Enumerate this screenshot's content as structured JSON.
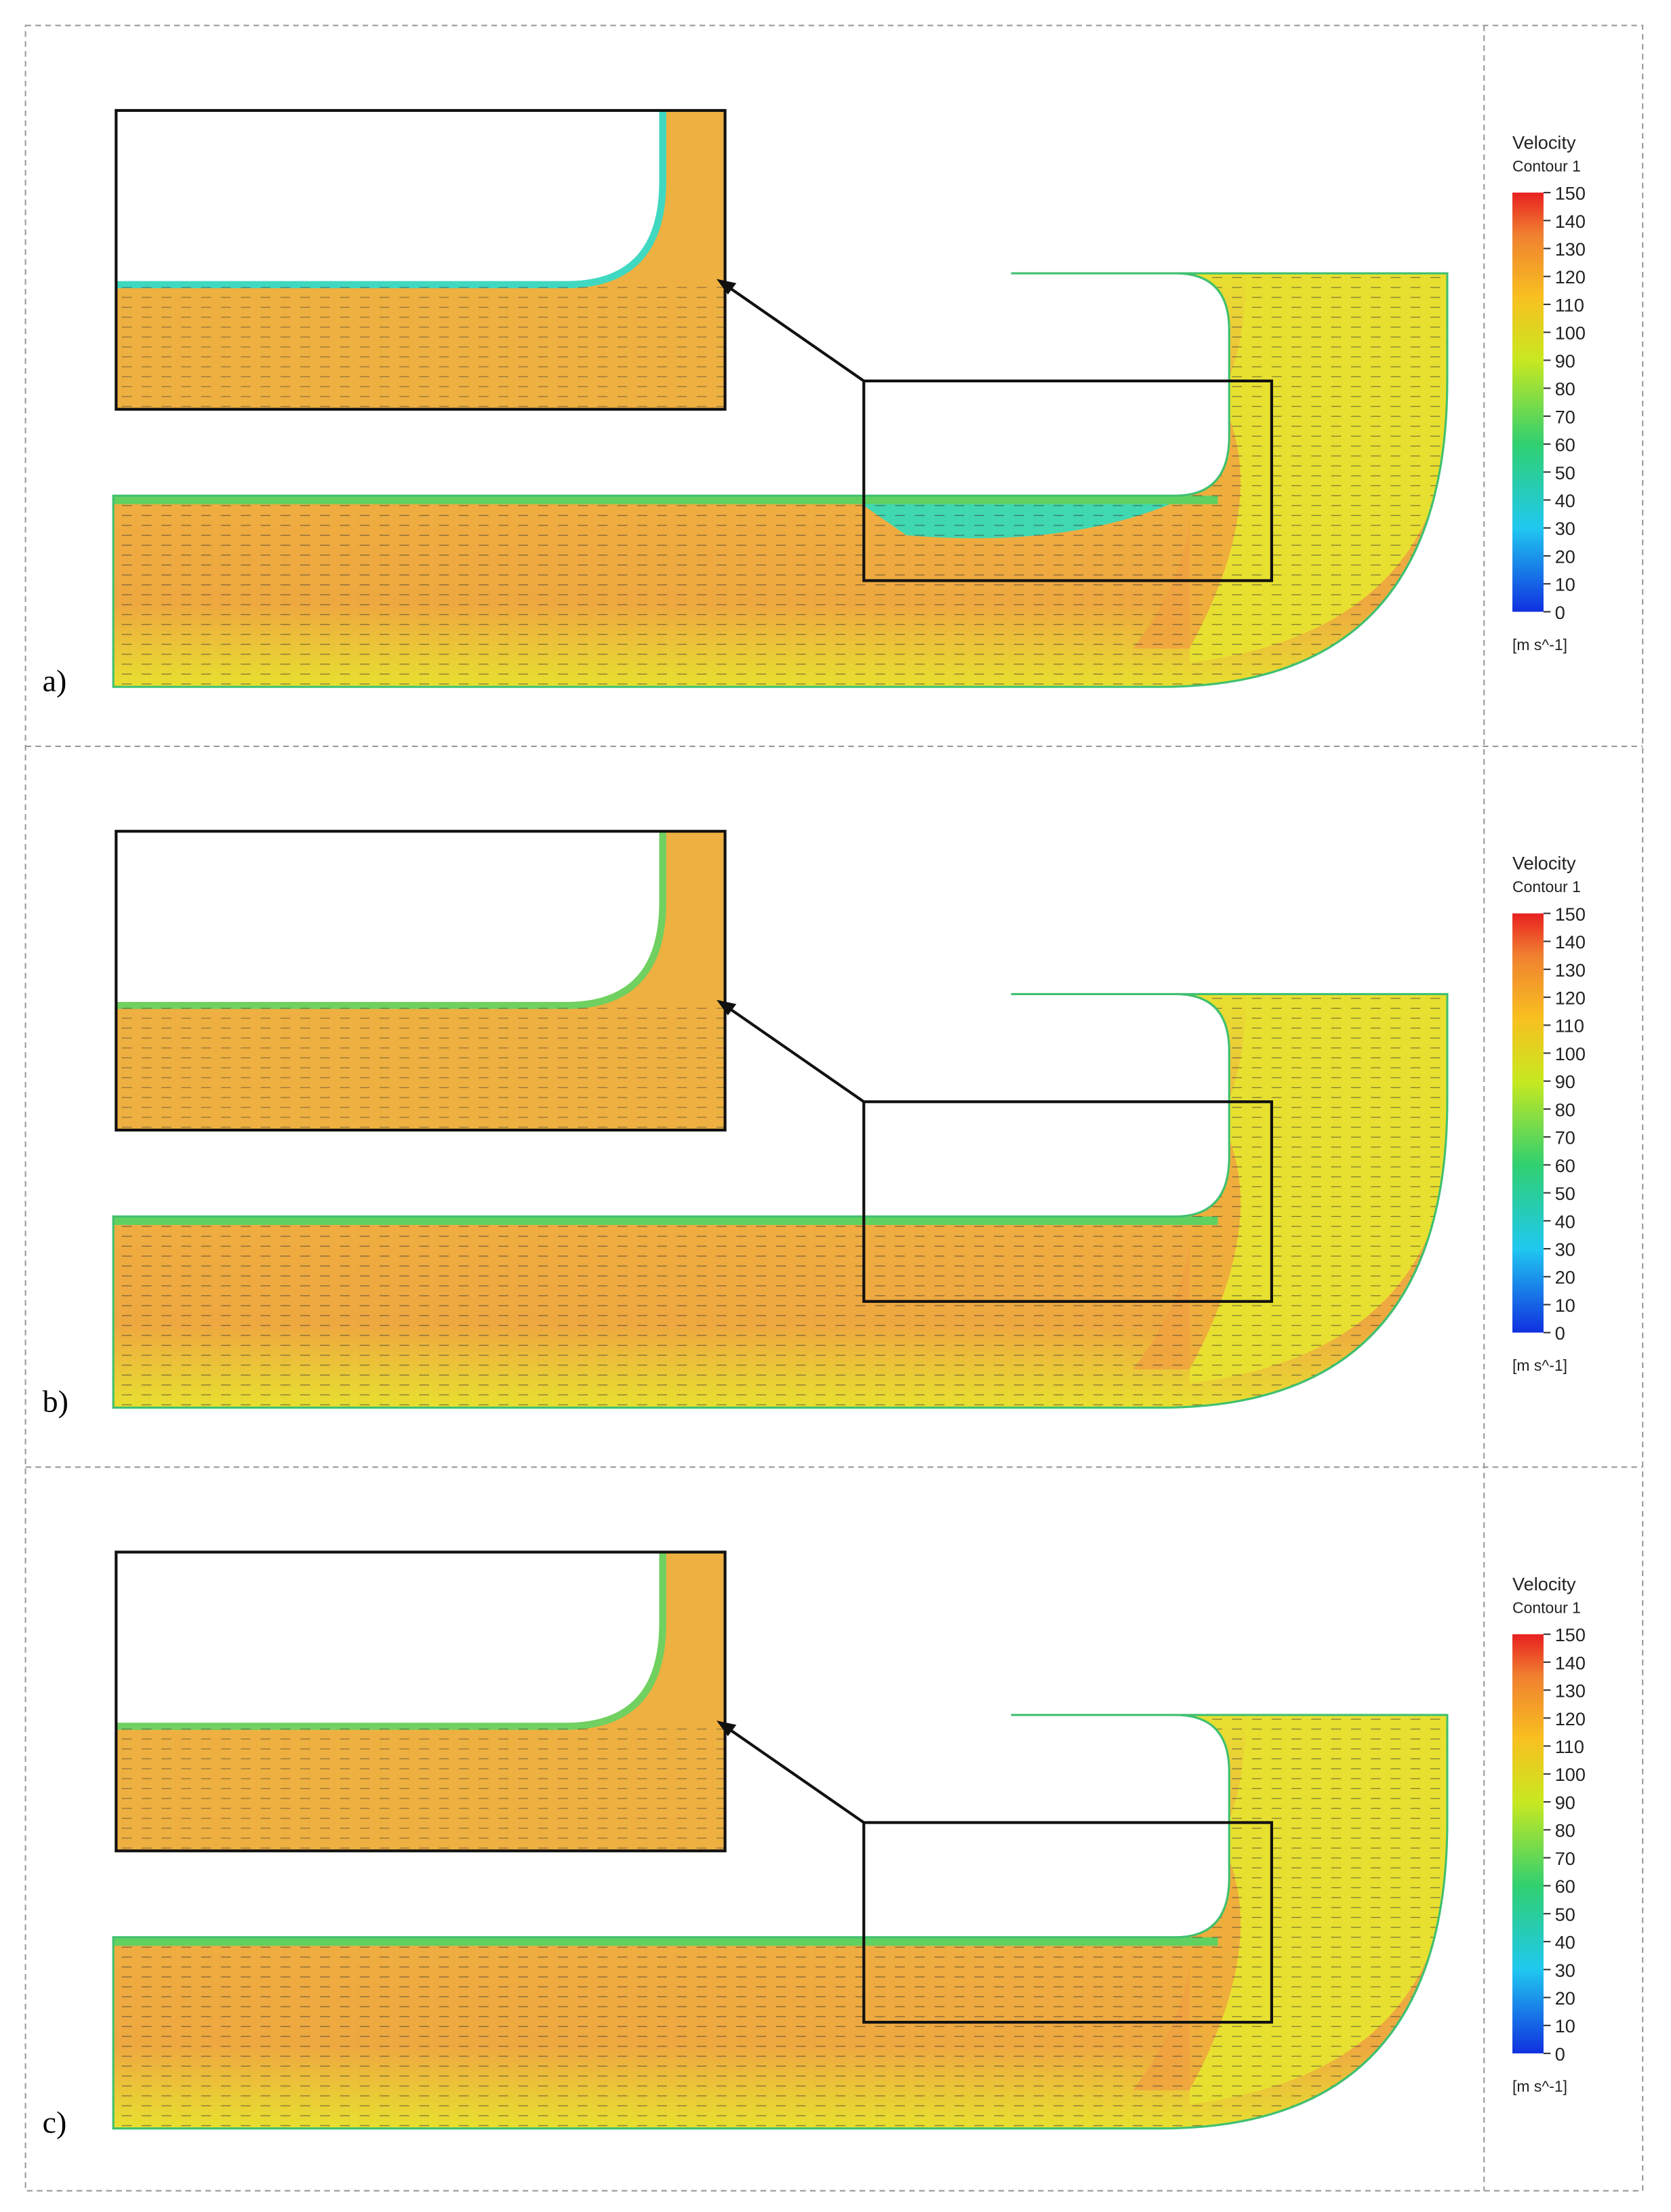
{
  "panels": [
    {
      "label": "a)",
      "legend": {
        "title": "Velocity",
        "subtitle": "Contour 1",
        "ticks": [
          150,
          140,
          130,
          120,
          110,
          100,
          90,
          80,
          70,
          60,
          50,
          40,
          30,
          20,
          10,
          0
        ],
        "unit": "[m s^-1]"
      }
    },
    {
      "label": "b)",
      "legend": {
        "title": "Velocity",
        "subtitle": "Contour 1",
        "ticks": [
          150,
          140,
          130,
          120,
          110,
          100,
          90,
          80,
          70,
          60,
          50,
          40,
          30,
          20,
          10,
          0
        ],
        "unit": "[m s^-1]"
      }
    },
    {
      "label": "c)",
      "legend": {
        "title": "Velocity",
        "subtitle": "Contour 1",
        "ticks": [
          150,
          140,
          130,
          120,
          110,
          100,
          90,
          80,
          70,
          60,
          50,
          40,
          30,
          20,
          10,
          0
        ],
        "unit": "[m s^-1]"
      }
    }
  ]
}
